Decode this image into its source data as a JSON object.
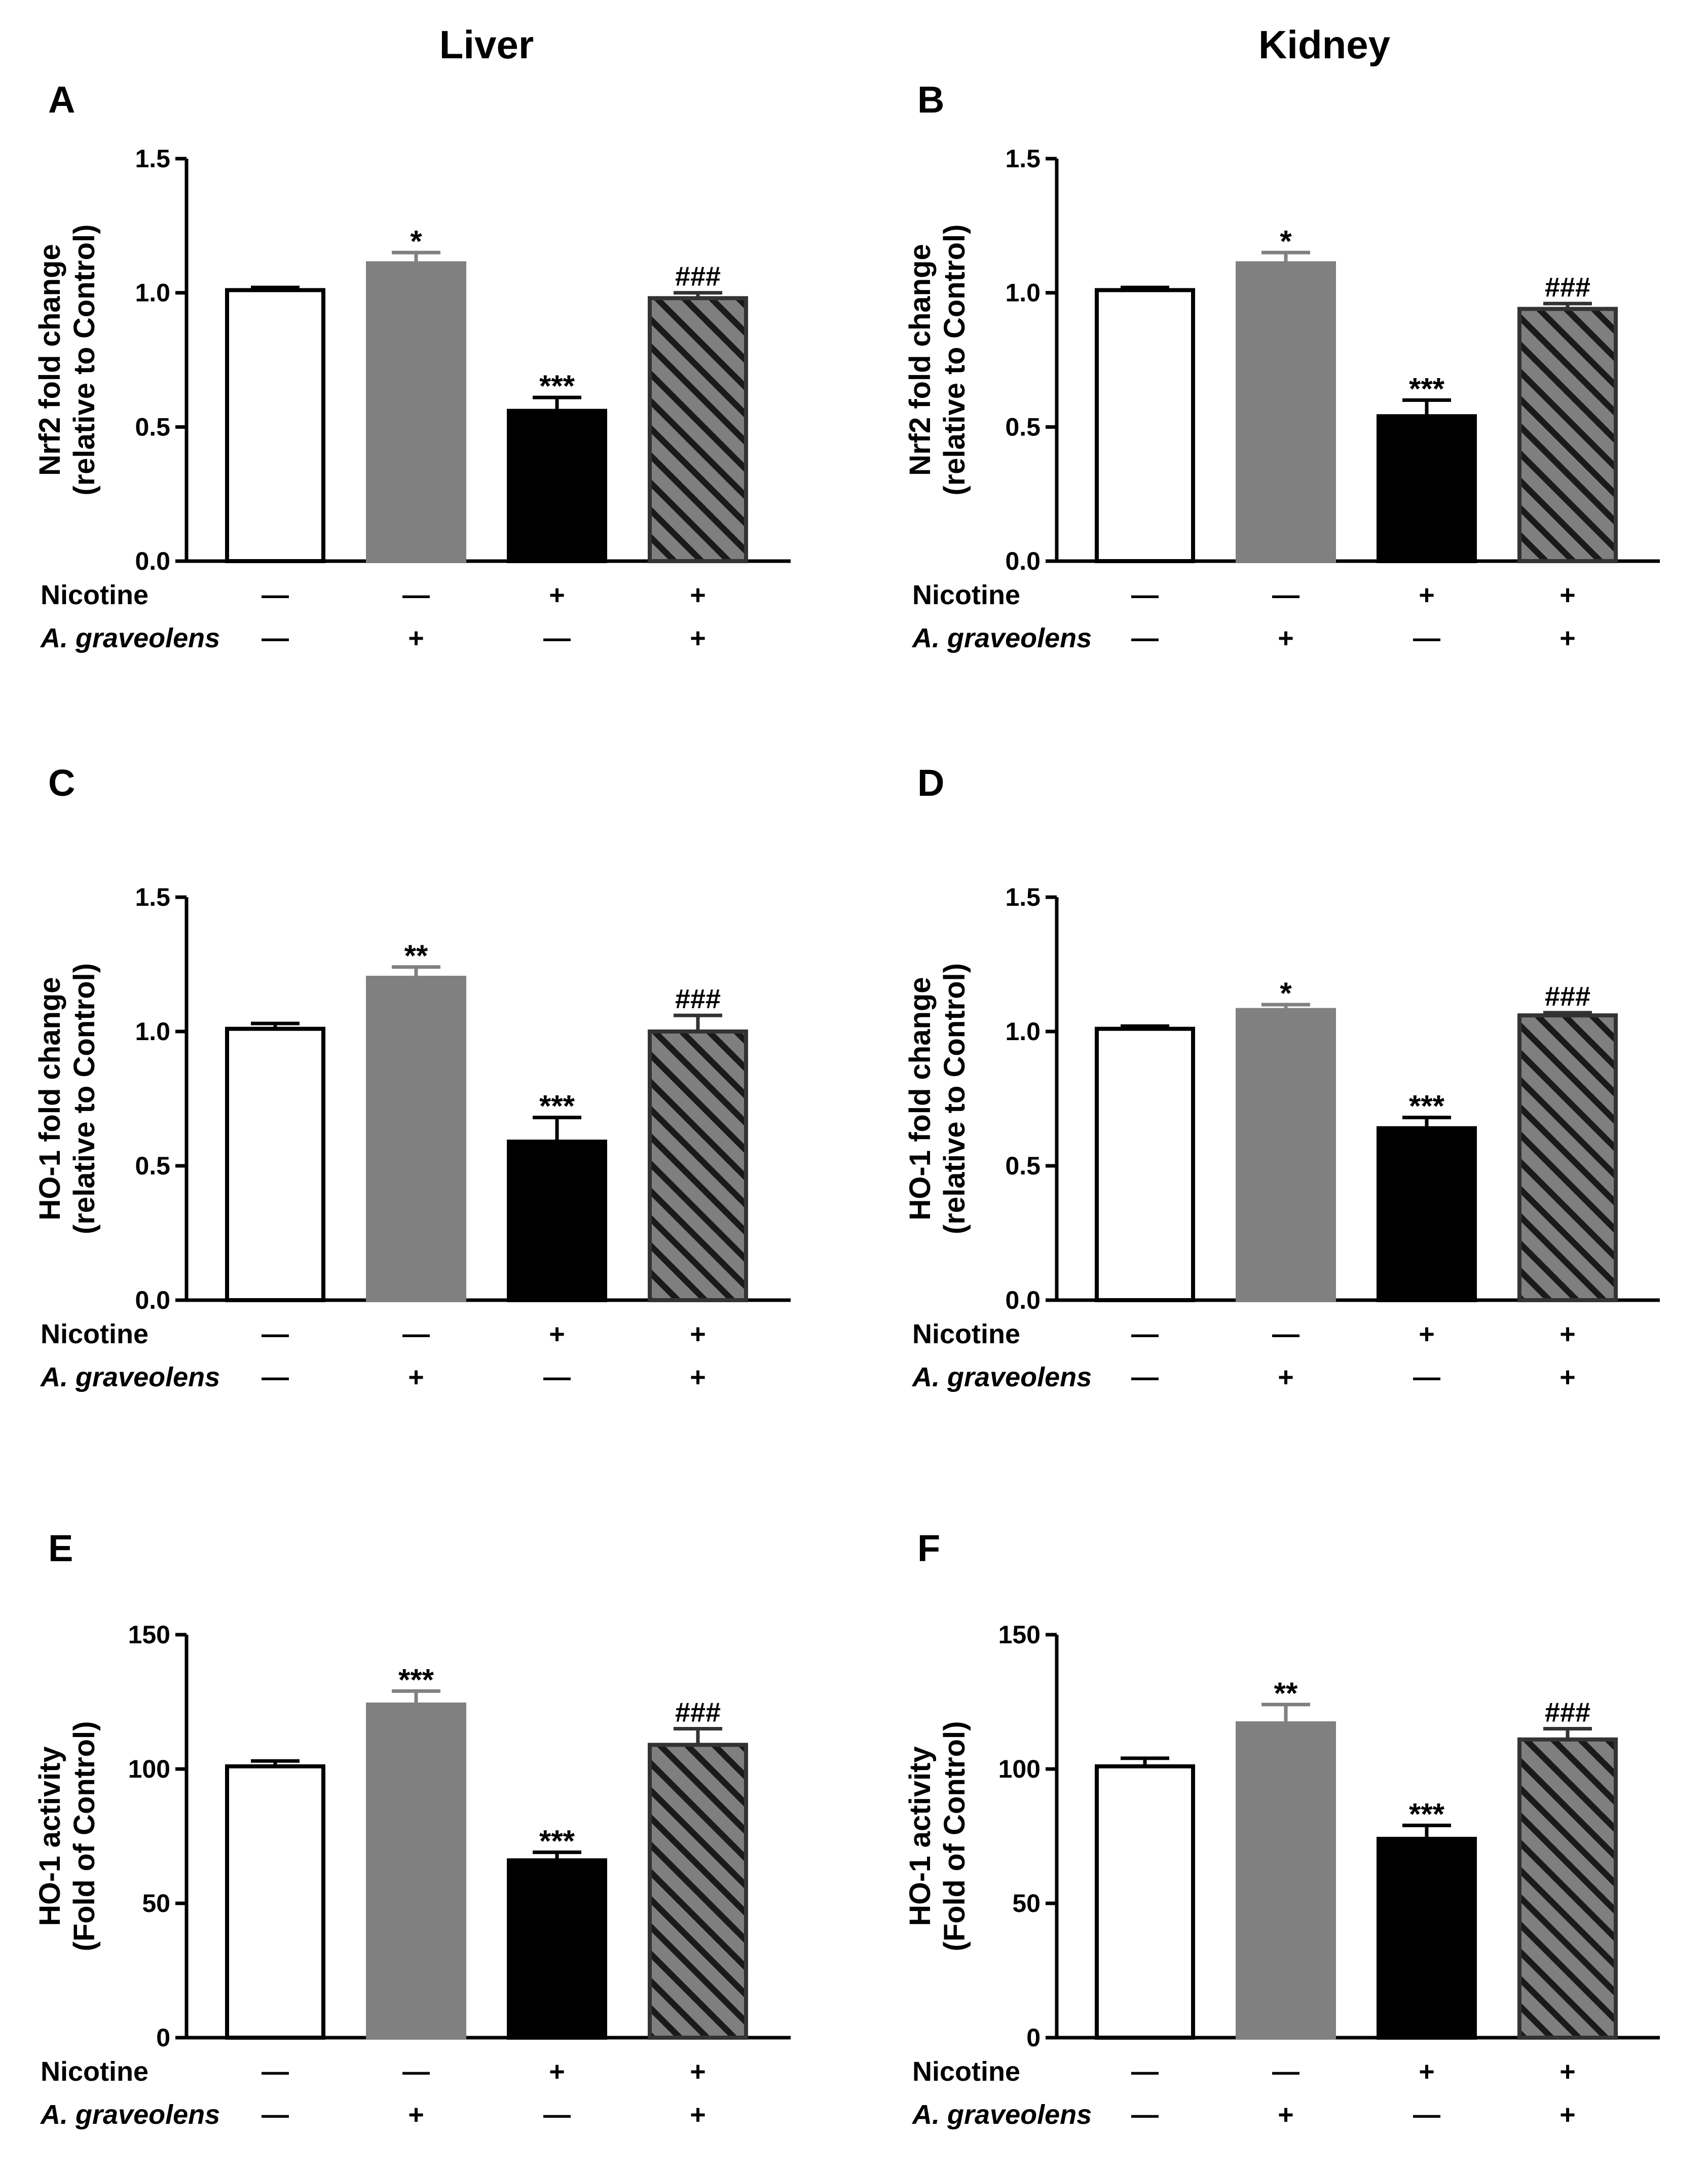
{
  "figure": {
    "column_titles": [
      "Liver",
      "Kidney"
    ]
  },
  "colors": {
    "control": "#ffffff",
    "graveolens": "#808080",
    "nicotine": "#000000",
    "combined_fill": "#7f7f7f",
    "combined_stripe": "#1a1a1a",
    "outline": "#000000"
  },
  "treatment_rows": [
    {
      "label": "Nicotine",
      "italic": false,
      "values": [
        "—",
        "—",
        "+",
        "+"
      ]
    },
    {
      "label": "A. graveolens",
      "italic": true,
      "values": [
        "—",
        "+",
        "—",
        "+"
      ]
    }
  ],
  "chart_data": [
    {
      "panel": "A",
      "column": "Liver",
      "type": "bar",
      "ylabel_lines": [
        "Nrf2 fold change",
        "(relative to Control)"
      ],
      "ylim": [
        0,
        1.5
      ],
      "yticks": [
        "0.0",
        "0.5",
        "1.0",
        "1.5"
      ],
      "ytick_values": [
        0,
        0.5,
        1.0,
        1.5
      ],
      "values": [
        1.01,
        1.11,
        0.56,
        0.98
      ],
      "errors": [
        0.01,
        0.04,
        0.05,
        0.02
      ],
      "significance": [
        "",
        "*",
        "***",
        "###"
      ]
    },
    {
      "panel": "B",
      "column": "Kidney",
      "type": "bar",
      "ylabel_lines": [
        "Nrf2 fold change",
        "(relative to Control)"
      ],
      "ylim": [
        0,
        1.5
      ],
      "yticks": [
        "0.0",
        "0.5",
        "1.0",
        "1.5"
      ],
      "ytick_values": [
        0,
        0.5,
        1.0,
        1.5
      ],
      "values": [
        1.01,
        1.11,
        0.54,
        0.94
      ],
      "errors": [
        0.01,
        0.04,
        0.06,
        0.02
      ],
      "significance": [
        "",
        "*",
        "***",
        "###"
      ]
    },
    {
      "panel": "C",
      "column": "Liver",
      "type": "bar",
      "ylabel_lines": [
        "HO-1 fold change",
        "(relative to Control)"
      ],
      "ylim": [
        0,
        1.5
      ],
      "yticks": [
        "0.0",
        "0.5",
        "1.0",
        "1.5"
      ],
      "ytick_values": [
        0,
        0.5,
        1.0,
        1.5
      ],
      "values": [
        1.01,
        1.2,
        0.59,
        1.0
      ],
      "errors": [
        0.02,
        0.04,
        0.09,
        0.06
      ],
      "significance": [
        "",
        "**",
        "***",
        "###"
      ]
    },
    {
      "panel": "D",
      "column": "Kidney",
      "type": "bar",
      "ylabel_lines": [
        "HO-1 fold change",
        "(relative to Control)"
      ],
      "ylim": [
        0,
        1.5
      ],
      "yticks": [
        "0.0",
        "0.5",
        "1.0",
        "1.5"
      ],
      "ytick_values": [
        0,
        0.5,
        1.0,
        1.5
      ],
      "values": [
        1.01,
        1.08,
        0.64,
        1.06
      ],
      "errors": [
        0.01,
        0.02,
        0.04,
        0.01
      ],
      "significance": [
        "",
        "*",
        "***",
        "###"
      ]
    },
    {
      "panel": "E",
      "column": "Liver",
      "type": "bar",
      "ylabel_lines": [
        "HO-1 activity",
        "(Fold of Control)"
      ],
      "ylim": [
        0,
        150
      ],
      "yticks": [
        "0",
        "50",
        "100",
        "150"
      ],
      "ytick_values": [
        0,
        50,
        100,
        150
      ],
      "values": [
        101,
        124,
        66,
        109
      ],
      "errors": [
        2,
        5,
        3,
        6
      ],
      "significance": [
        "",
        "***",
        "***",
        "###"
      ]
    },
    {
      "panel": "F",
      "column": "Kidney",
      "type": "bar",
      "ylabel_lines": [
        "HO-1 activity",
        "(Fold of Control)"
      ],
      "ylim": [
        0,
        150
      ],
      "yticks": [
        "0",
        "50",
        "100",
        "150"
      ],
      "ytick_values": [
        0,
        50,
        100,
        150
      ],
      "values": [
        101,
        117,
        74,
        111
      ],
      "errors": [
        3,
        7,
        5,
        4
      ],
      "significance": [
        "",
        "**",
        "***",
        "###"
      ]
    }
  ]
}
